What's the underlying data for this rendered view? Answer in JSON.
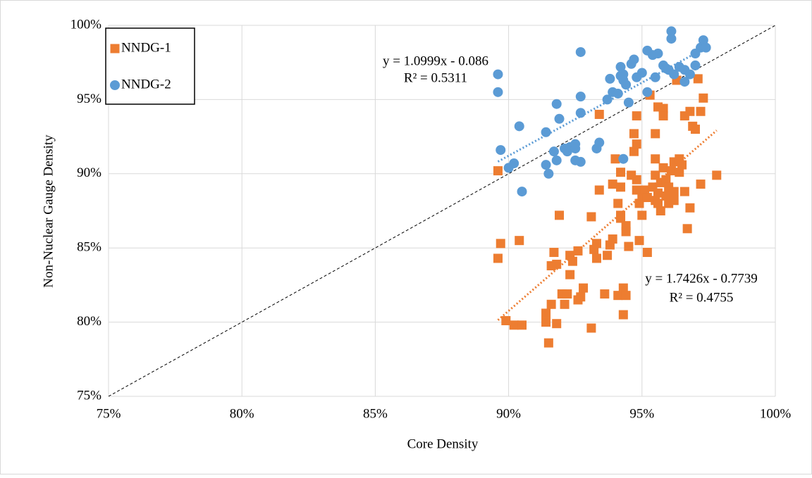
{
  "chart_data": {
    "type": "scatter",
    "x_label": "Core Density",
    "y_label": "Non-Nuclear Gauge Density",
    "xlim": [
      75,
      100
    ],
    "ylim": [
      75,
      100
    ],
    "xticks": [
      {
        "value": 75,
        "label": "75%"
      },
      {
        "value": 80,
        "label": "80%"
      },
      {
        "value": 85,
        "label": "85%"
      },
      {
        "value": 90,
        "label": "90%"
      },
      {
        "value": 95,
        "label": "95%"
      },
      {
        "value": 100,
        "label": "100%"
      }
    ],
    "yticks": [
      {
        "value": 75,
        "label": "75%"
      },
      {
        "value": 80,
        "label": "80%"
      },
      {
        "value": 85,
        "label": "85%"
      },
      {
        "value": 90,
        "label": "90%"
      },
      {
        "value": 95,
        "label": "95%"
      },
      {
        "value": 100,
        "label": "100%"
      }
    ],
    "grid": true,
    "legend": "top-left",
    "series": [
      {
        "name": "NNDG-1",
        "color": "#ed7d31",
        "marker": "square",
        "trendline": {
          "equation": "y = 1.7426x - 0.7739",
          "r2": "R² = 0.4755"
        },
        "x": [
          89.7,
          89.6,
          89.6,
          89.9,
          90.2,
          90.5,
          90.4,
          91.4,
          91.5,
          91.4,
          91.6,
          91.6,
          91.7,
          91.8,
          91.9,
          91.8,
          92.0,
          92.1,
          92.2,
          92.3,
          92.3,
          92.4,
          92.6,
          92.6,
          92.7,
          92.8,
          93.1,
          93.1,
          93.2,
          93.3,
          93.3,
          93.4,
          93.4,
          93.6,
          93.7,
          93.8,
          93.9,
          93.9,
          94.0,
          94.1,
          94.1,
          94.2,
          94.2,
          94.2,
          94.2,
          94.3,
          94.3,
          94.4,
          94.4,
          94.4,
          94.5,
          94.6,
          94.7,
          94.7,
          94.8,
          94.8,
          94.8,
          94.8,
          94.9,
          94.9,
          95.0,
          95.0,
          95.1,
          95.2,
          95.2,
          95.3,
          95.4,
          95.5,
          95.5,
          95.5,
          95.5,
          95.6,
          95.6,
          95.6,
          95.7,
          95.7,
          95.8,
          95.8,
          95.8,
          95.9,
          95.9,
          96.0,
          96.0,
          96.1,
          96.2,
          96.2,
          96.2,
          96.3,
          96.4,
          96.4,
          96.5,
          96.6,
          96.6,
          96.7,
          96.8,
          96.8,
          96.9,
          97.0,
          97.1,
          97.2,
          97.3,
          97.2,
          97.8
        ],
        "values": [
          85.3,
          84.3,
          90.2,
          80.1,
          79.8,
          79.8,
          85.5,
          80.0,
          78.6,
          80.6,
          81.2,
          83.8,
          84.7,
          83.9,
          87.2,
          79.9,
          81.9,
          81.2,
          81.9,
          84.5,
          83.2,
          84.1,
          84.8,
          81.5,
          81.7,
          82.3,
          79.6,
          87.1,
          84.9,
          84.3,
          85.3,
          88.9,
          94.0,
          81.9,
          84.5,
          85.2,
          85.6,
          89.3,
          91.0,
          81.8,
          88.0,
          90.1,
          89.1,
          87.2,
          87.0,
          80.5,
          82.3,
          86.5,
          81.8,
          86.1,
          85.1,
          89.9,
          91.5,
          92.7,
          92.0,
          93.9,
          88.9,
          89.6,
          88.0,
          85.5,
          87.2,
          88.4,
          88.9,
          88.4,
          84.7,
          95.3,
          89.1,
          88.2,
          91.0,
          92.7,
          89.9,
          88.7,
          94.5,
          88.0,
          89.4,
          87.5,
          90.4,
          94.4,
          93.9,
          88.5,
          89.6,
          88.0,
          89.1,
          90.2,
          90.8,
          88.8,
          88.2,
          96.3,
          90.1,
          91.0,
          90.6,
          88.8,
          93.9,
          86.3,
          87.7,
          94.2,
          93.2,
          93.0,
          96.4,
          94.2,
          95.1,
          89.3,
          89.9
        ]
      },
      {
        "name": "NNDG-2",
        "color": "#5b9bd5",
        "marker": "circle",
        "trendline": {
          "equation": "y = 1.0999x - 0.086",
          "r2": "R² = 0.5311"
        },
        "x": [
          89.7,
          89.6,
          89.6,
          90.0,
          90.2,
          90.4,
          90.5,
          91.4,
          91.4,
          91.5,
          91.7,
          91.8,
          91.9,
          91.8,
          92.1,
          92.2,
          92.3,
          92.5,
          92.5,
          92.5,
          92.7,
          92.7,
          92.7,
          92.7,
          93.3,
          93.4,
          93.7,
          93.8,
          93.9,
          94.1,
          94.2,
          94.2,
          94.3,
          94.3,
          94.4,
          94.3,
          94.5,
          94.6,
          94.7,
          94.8,
          95.0,
          95.2,
          95.2,
          95.4,
          95.5,
          95.6,
          95.8,
          95.9,
          96.0,
          96.1,
          96.1,
          96.2,
          96.4,
          96.6,
          96.6,
          96.8,
          97.0,
          97.0,
          97.2,
          97.3,
          97.4
        ],
        "values": [
          91.6,
          95.5,
          96.7,
          90.4,
          90.7,
          93.2,
          88.8,
          92.8,
          90.6,
          90.0,
          91.5,
          94.7,
          93.7,
          90.9,
          91.7,
          91.5,
          91.8,
          91.7,
          92.0,
          90.9,
          90.8,
          98.2,
          95.2,
          94.1,
          91.7,
          92.1,
          95.0,
          96.4,
          95.5,
          95.4,
          97.2,
          96.6,
          91.0,
          96.7,
          96.0,
          96.3,
          94.8,
          97.4,
          97.7,
          96.5,
          96.8,
          95.5,
          98.3,
          98.0,
          96.5,
          98.1,
          97.3,
          97.1,
          97.0,
          99.6,
          99.1,
          96.7,
          97.2,
          97.0,
          96.2,
          96.7,
          98.1,
          97.3,
          98.5,
          99.0,
          98.5
        ]
      }
    ]
  }
}
